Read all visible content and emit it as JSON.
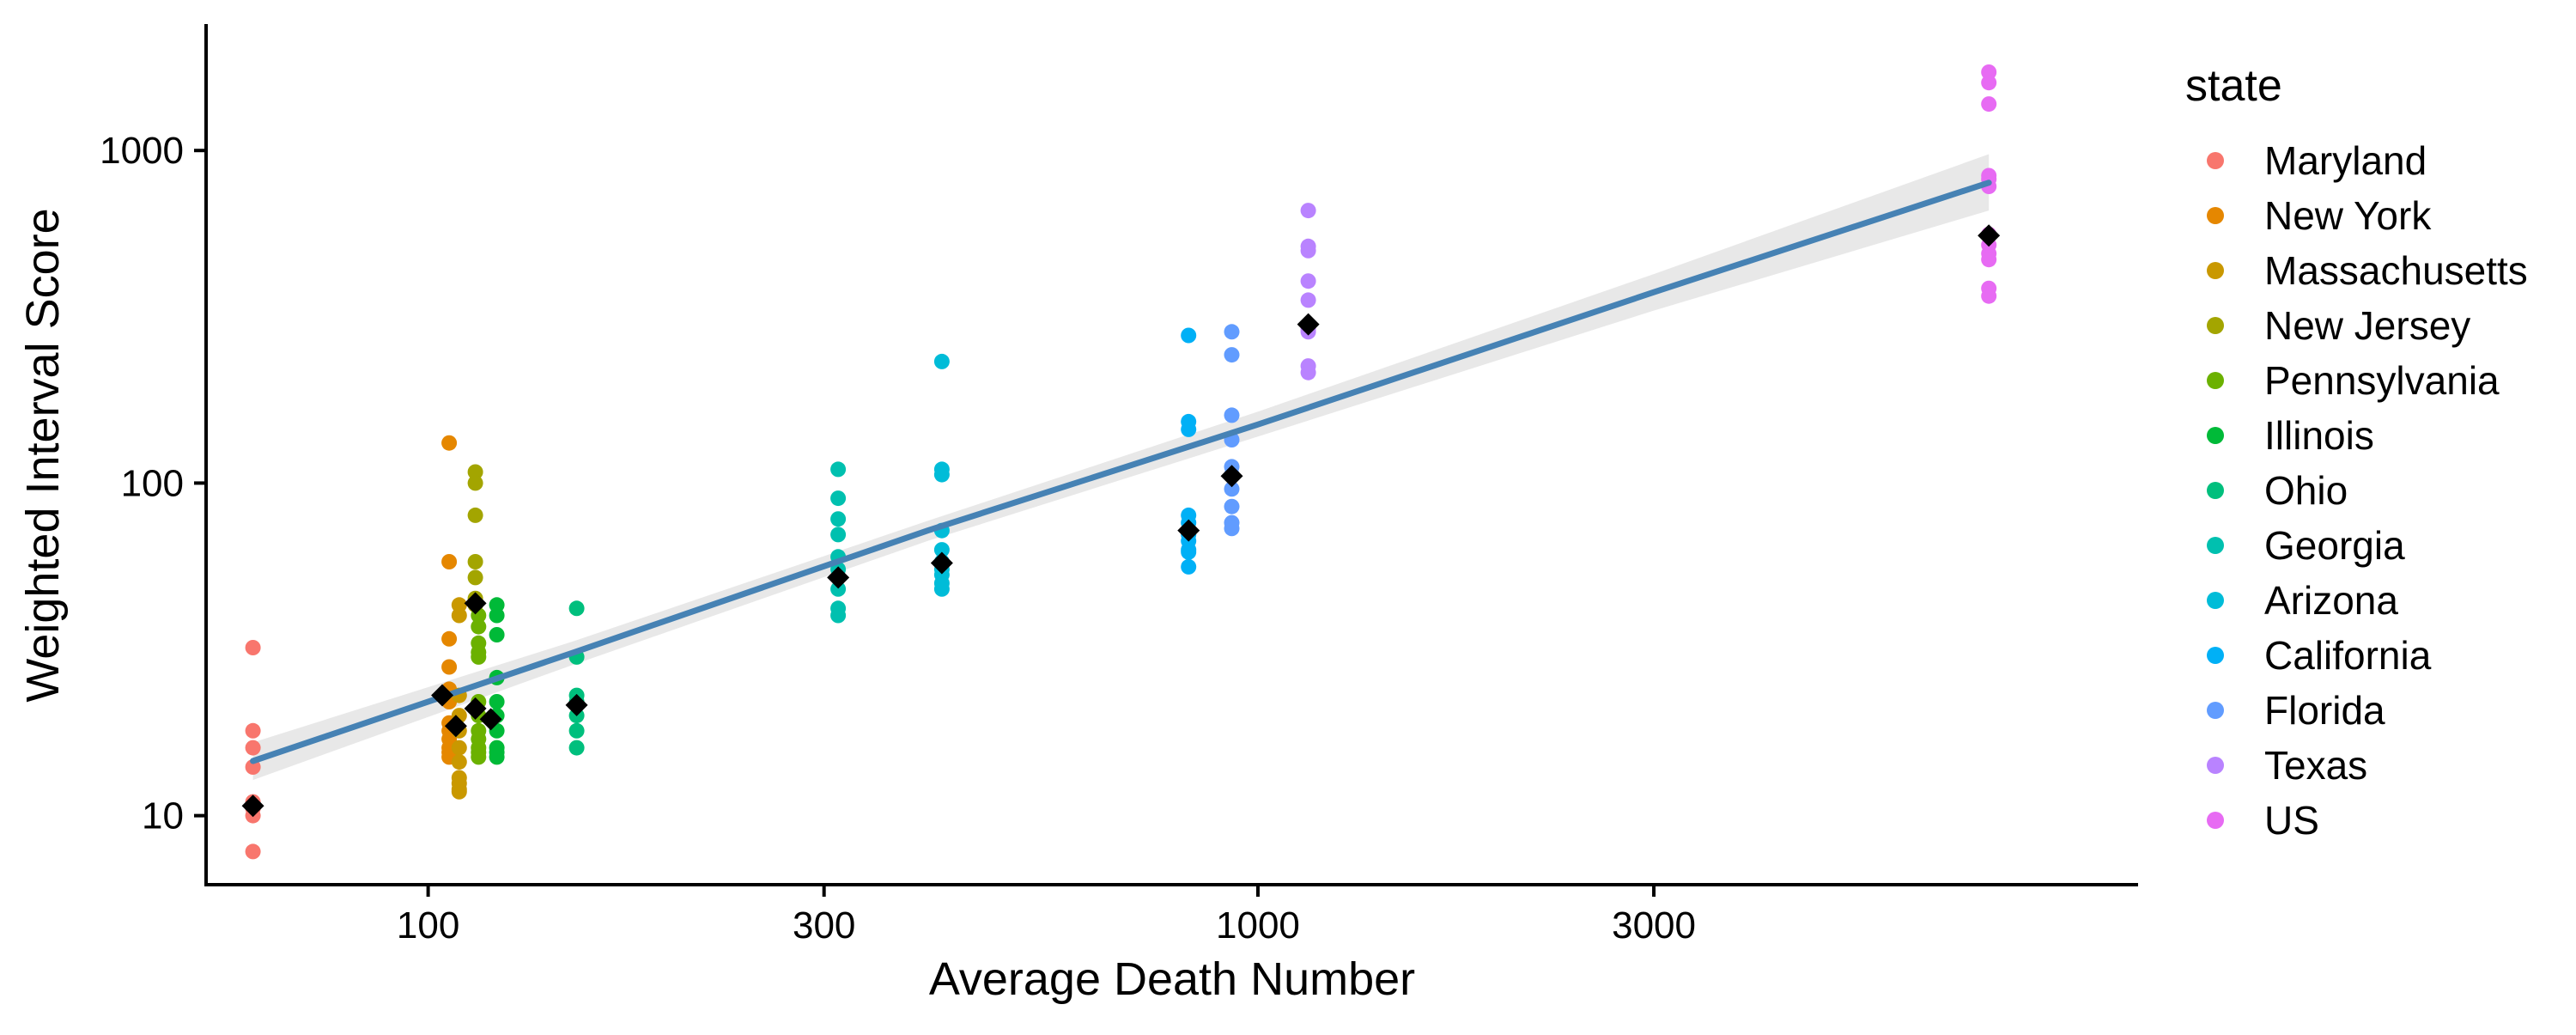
{
  "chart_data": {
    "type": "scatter",
    "title": "",
    "xlabel": "Average Death Number",
    "ylabel": "Weighted Interval Score",
    "x_scale": "log10",
    "y_scale": "log10",
    "xlim": [
      54,
      11500
    ],
    "ylim": [
      6.2,
      2400
    ],
    "x_ticks": [
      100,
      300,
      1000,
      3000
    ],
    "x_tick_labels": [
      "100",
      "300",
      "1000",
      "3000"
    ],
    "y_ticks": [
      10,
      100,
      1000
    ],
    "y_tick_labels": [
      "10",
      "100",
      "1000"
    ],
    "grid": false,
    "legend": {
      "title": "state",
      "placement": "right"
    },
    "series": [
      {
        "name": "Maryland",
        "color": "#F8766D",
        "x": 61.5,
        "y": [
          32,
          18,
          16,
          14,
          11,
          10.5,
          10,
          7.8
        ]
      },
      {
        "name": "New York",
        "color": "#E58700",
        "x": 106,
        "y": [
          132,
          58,
          34,
          28,
          24,
          22,
          19,
          18,
          17,
          16,
          15.5,
          15
        ]
      },
      {
        "name": "Massachusetts",
        "color": "#C99800",
        "x": 109,
        "y": [
          43,
          40,
          23,
          20,
          18,
          16,
          14.5,
          13,
          12.5,
          12,
          11.8
        ]
      },
      {
        "name": "New Jersey",
        "color": "#A3A500",
        "x": 114,
        "y": [
          108,
          100,
          80,
          58,
          52,
          45,
          43
        ]
      },
      {
        "name": "Pennsylvania",
        "color": "#6BB100",
        "x": 115,
        "y": [
          40,
          37,
          33,
          31,
          30,
          22,
          20,
          18,
          17,
          16,
          15.5,
          15
        ]
      },
      {
        "name": "Illinois",
        "color": "#00BA38",
        "x": 121,
        "y": [
          43,
          40,
          35,
          26,
          22,
          20,
          18,
          16,
          15.5,
          15
        ]
      },
      {
        "name": "Ohio",
        "color": "#00BF7D",
        "x": 151,
        "y": [
          42,
          30,
          23,
          22,
          20,
          18,
          16
        ]
      },
      {
        "name": "Georgia",
        "color": "#00C0AF",
        "x": 312,
        "y": [
          110,
          90,
          78,
          70,
          60,
          55,
          52,
          48,
          42,
          40
        ]
      },
      {
        "name": "Arizona",
        "color": "#00BCD8",
        "x": 416,
        "y": [
          232,
          110,
          106,
          72,
          63,
          58,
          55,
          53,
          50,
          48
        ]
      },
      {
        "name": "California",
        "color": "#00B0F6",
        "x": 825,
        "y": [
          278,
          153,
          145,
          80,
          76,
          70,
          67,
          63,
          62,
          56
        ]
      },
      {
        "name": "Florida",
        "color": "#619CFF",
        "x": 930,
        "y": [
          285,
          243,
          160,
          135,
          112,
          106,
          96,
          85,
          76,
          73
        ]
      },
      {
        "name": "Texas",
        "color": "#B983FF",
        "x": 1150,
        "y": [
          660,
          515,
          500,
          405,
          355,
          290,
          285,
          225,
          215
        ]
      },
      {
        "name": "US",
        "color": "#E76BF3",
        "x": 7600,
        "y": [
          1720,
          1600,
          1380,
          840,
          820,
          780,
          560,
          520,
          490,
          470,
          385,
          365
        ]
      }
    ],
    "series_means": [
      {
        "x": 61.5,
        "y": 10.7
      },
      {
        "x": 104,
        "y": 23
      },
      {
        "x": 108,
        "y": 18.6
      },
      {
        "x": 114,
        "y": 43.5
      },
      {
        "x": 114,
        "y": 21
      },
      {
        "x": 119,
        "y": 19.5
      },
      {
        "x": 151,
        "y": 21.5
      },
      {
        "x": 312,
        "y": 52
      },
      {
        "x": 416,
        "y": 57.5
      },
      {
        "x": 825,
        "y": 72
      },
      {
        "x": 930,
        "y": 105
      },
      {
        "x": 1150,
        "y": 300
      },
      {
        "x": 7600,
        "y": 555
      }
    ],
    "mean_marker_color": "#000000",
    "trend_line": {
      "color": "#4682B4",
      "band_color": "#E8E8E8",
      "points": [
        {
          "x": 61.5,
          "y": 14.6,
          "lo": 12.8,
          "hi": 16.6
        },
        {
          "x": 150,
          "y": 31,
          "lo": 28.5,
          "hi": 33.5
        },
        {
          "x": 400,
          "y": 72,
          "lo": 67,
          "hi": 77
        },
        {
          "x": 1000,
          "y": 150,
          "lo": 138,
          "hi": 164
        },
        {
          "x": 3000,
          "y": 375,
          "lo": 330,
          "hi": 425
        },
        {
          "x": 7600,
          "y": 800,
          "lo": 660,
          "hi": 975
        }
      ]
    }
  }
}
